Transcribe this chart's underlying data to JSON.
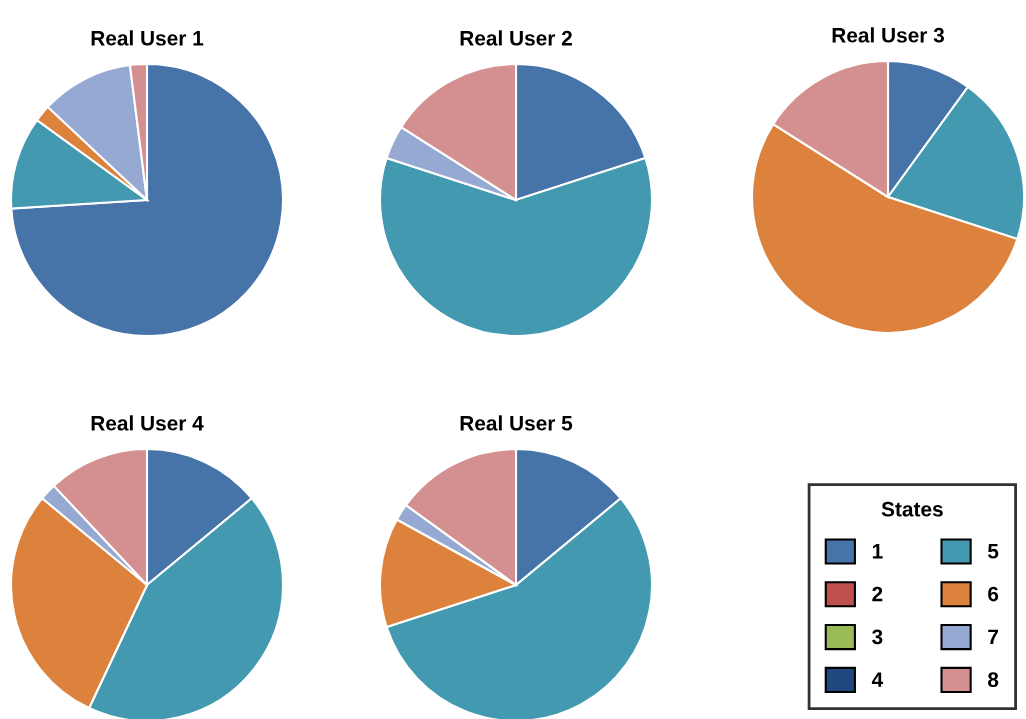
{
  "chart_data": [
    {
      "type": "pie",
      "title": "Real User 1",
      "categories": [
        null,
        null,
        null,
        null,
        null,
        null,
        null,
        null
      ],
      "values": [
        74,
        0,
        0,
        0,
        11,
        2,
        11,
        2
      ],
      "colors": [
        "#4673a8",
        "#c0504d",
        "#9bbb59",
        "#1f497d",
        "#4299b0",
        "#dc823c",
        "#95a9d2",
        "#d49090"
      ]
    },
    {
      "type": "pie",
      "title": "Real User 2",
      "categories": [
        null,
        null,
        null,
        null,
        null,
        null,
        null,
        null
      ],
      "values": [
        20,
        0,
        0,
        0,
        60,
        0,
        4,
        16
      ],
      "colors": [
        "#4673a8",
        "#c0504d",
        "#9bbb59",
        "#1f497d",
        "#4299b0",
        "#dc823c",
        "#95a9d2",
        "#d49090"
      ]
    },
    {
      "type": "pie",
      "title": "Real User 3",
      "categories": [
        null,
        null,
        null,
        null,
        null,
        null,
        null,
        null
      ],
      "values": [
        10,
        0,
        0,
        0,
        20,
        54,
        0,
        16
      ],
      "colors": [
        "#4673a8",
        "#c0504d",
        "#9bbb59",
        "#1f497d",
        "#4299b0",
        "#dc823c",
        "#95a9d2",
        "#d49090"
      ]
    },
    {
      "type": "pie",
      "title": "Real User 4",
      "categories": [
        null,
        null,
        null,
        null,
        null,
        null,
        null,
        null
      ],
      "values": [
        14,
        0,
        0,
        0,
        43,
        29,
        2,
        12
      ],
      "colors": [
        "#4673a8",
        "#c0504d",
        "#9bbb59",
        "#1f497d",
        "#4299b0",
        "#dc823c",
        "#95a9d2",
        "#d49090"
      ]
    },
    {
      "type": "pie",
      "title": "Real User 5",
      "categories": [
        "1",
        "2",
        "3",
        "4",
        "5",
        "6",
        "7",
        "8"
      ],
      "values": [
        14,
        0,
        0,
        0,
        56,
        13,
        2,
        15
      ],
      "colors": [
        "#4673a8",
        "#c0504d",
        "#9bbb59",
        "#1f497d",
        "#4299b0",
        "#dc823c",
        "#95a9d2",
        "#d49090"
      ],
      "legend": "bottom right",
      "legend_title": "States"
    }
  ]
}
